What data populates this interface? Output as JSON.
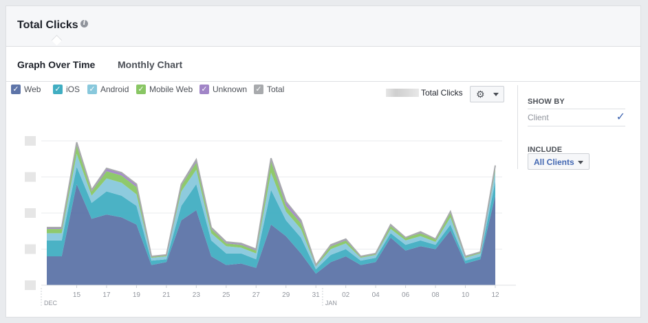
{
  "header": {
    "title": "Total Clicks",
    "info_icon": "info-icon"
  },
  "tabs": [
    {
      "label": "Graph Over Time",
      "active": true
    },
    {
      "label": "Monthly Chart",
      "active": false
    }
  ],
  "legend": [
    {
      "label": "Web",
      "color": "#5d74a8",
      "checked": true
    },
    {
      "label": "iOS",
      "color": "#41aec2",
      "checked": true
    },
    {
      "label": "Android",
      "color": "#88c8dc",
      "checked": true
    },
    {
      "label": "Mobile Web",
      "color": "#89c664",
      "checked": true
    },
    {
      "label": "Unknown",
      "color": "#a185c7",
      "checked": true
    },
    {
      "label": "Total",
      "color": "#a8aaad",
      "checked": true
    }
  ],
  "summary": {
    "total_label": "Total Clicks"
  },
  "settings_button": {
    "icon": "gear-icon"
  },
  "sidebar": {
    "show_by": {
      "heading": "SHOW BY",
      "selected": "Client"
    },
    "include": {
      "heading": "INCLUDE",
      "button_label": "All Clients"
    }
  },
  "chart_data": {
    "type": "area",
    "stacked": true,
    "x_ticks": [
      "15",
      "17",
      "19",
      "21",
      "23",
      "25",
      "27",
      "29",
      "31",
      "02",
      "04",
      "06",
      "08",
      "10",
      "12"
    ],
    "month_labels": [
      "DEC",
      "JAN"
    ],
    "ylim": [
      0,
      100
    ],
    "grid": true,
    "legend_placement": "top-left",
    "series": [
      {
        "name": "Web",
        "color": "#5d74a8",
        "values": [
          20,
          20,
          70,
          46,
          49,
          47,
          42,
          14,
          16,
          45,
          52,
          20,
          14,
          15,
          12,
          42,
          34,
          22,
          8,
          16,
          20,
          14,
          16,
          33,
          24,
          27,
          25,
          38,
          15,
          18,
          62
        ]
      },
      {
        "name": "iOS",
        "color": "#41aec2",
        "values": [
          11,
          11,
          12,
          11,
          16,
          15,
          13,
          3,
          2,
          10,
          18,
          11,
          8,
          7,
          6,
          24,
          11,
          11,
          3,
          5,
          5,
          3,
          3,
          3,
          4,
          4,
          3,
          4,
          2,
          2,
          10
        ]
      },
      {
        "name": "Android",
        "color": "#88c8dc",
        "values": [
          5,
          5,
          9,
          5,
          9,
          9,
          8,
          2,
          2,
          10,
          10,
          5,
          5,
          4,
          4,
          12,
          6,
          6,
          2,
          4,
          4,
          2,
          2,
          3,
          3,
          3,
          2,
          5,
          2,
          2,
          7
        ]
      },
      {
        "name": "Mobile Web",
        "color": "#89c664",
        "values": [
          3,
          3,
          6,
          3,
          5,
          5,
          5,
          1,
          1,
          4,
          5,
          3,
          2,
          2,
          2,
          8,
          4,
          4,
          1,
          2,
          2,
          1,
          1,
          2,
          2,
          2,
          2,
          3,
          1,
          1,
          3
        ]
      },
      {
        "name": "Unknown",
        "color": "#a185c7",
        "values": [
          1,
          1,
          2,
          1,
          2,
          2,
          2,
          0,
          0,
          1,
          2,
          1,
          1,
          1,
          1,
          2,
          3,
          2,
          0,
          1,
          1,
          0,
          0,
          1,
          0,
          1,
          0,
          1,
          0,
          0,
          1
        ]
      }
    ]
  }
}
